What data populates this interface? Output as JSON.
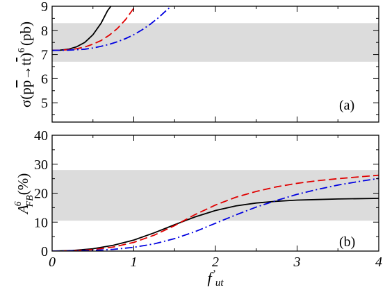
{
  "chart_data": [
    {
      "type": "line",
      "panel_label": "(a)",
      "ylabel": "σ(pp̄→tt̄)⁶ (pb)",
      "ylabel_parts": {
        "sigma": "σ(p",
        "pbar": "p",
        "arrow": "→t",
        "tbar": "t",
        "close": ")",
        "sup": "6",
        "unit": "(pb)"
      },
      "xlim": [
        0,
        4
      ],
      "ylim": [
        4.2,
        9
      ],
      "yticks": [
        5,
        6,
        7,
        8,
        9
      ],
      "x_tick_labels_shown": false,
      "band": {
        "min": 6.7,
        "max": 8.3,
        "color": "#dcdcdc"
      },
      "series": [
        {
          "style": "solid",
          "color": "#000000",
          "points": [
            [
              0,
              7.17
            ],
            [
              0.1,
              7.18
            ],
            [
              0.2,
              7.22
            ],
            [
              0.3,
              7.32
            ],
            [
              0.4,
              7.5
            ],
            [
              0.5,
              7.82
            ],
            [
              0.6,
              8.3
            ],
            [
              0.68,
              8.82
            ],
            [
              0.72,
              9.0
            ]
          ]
        },
        {
          "style": "dashed",
          "color": "#e00000",
          "points": [
            [
              0,
              7.17
            ],
            [
              0.1,
              7.18
            ],
            [
              0.2,
              7.2
            ],
            [
              0.3,
              7.24
            ],
            [
              0.4,
              7.31
            ],
            [
              0.5,
              7.43
            ],
            [
              0.6,
              7.58
            ],
            [
              0.7,
              7.8
            ],
            [
              0.8,
              8.08
            ],
            [
              0.9,
              8.45
            ],
            [
              1.0,
              8.92
            ],
            [
              1.03,
              9.0
            ]
          ]
        },
        {
          "style": "dashdot",
          "color": "#0000e0",
          "points": [
            [
              0,
              7.17
            ],
            [
              0.2,
              7.18
            ],
            [
              0.4,
              7.22
            ],
            [
              0.5,
              7.27
            ],
            [
              0.6,
              7.34
            ],
            [
              0.7,
              7.42
            ],
            [
              0.8,
              7.53
            ],
            [
              0.9,
              7.66
            ],
            [
              1.0,
              7.82
            ],
            [
              1.1,
              8.02
            ],
            [
              1.2,
              8.25
            ],
            [
              1.3,
              8.52
            ],
            [
              1.4,
              8.83
            ],
            [
              1.46,
              9.0
            ]
          ]
        }
      ]
    },
    {
      "type": "line",
      "panel_label": "(b)",
      "ylabel_parts": {
        "main": "A",
        "sup": "6",
        "sub": "FB",
        "unit": "(%)"
      },
      "xlabel_parts": {
        "main": "f",
        "prime": "’",
        "sub": "ut"
      },
      "xlim": [
        0,
        4
      ],
      "ylim": [
        0,
        40
      ],
      "xticks": [
        0,
        1,
        2,
        3,
        4
      ],
      "yticks": [
        0,
        10,
        20,
        30,
        40
      ],
      "band": {
        "min": 10.5,
        "max": 28,
        "color": "#dcdcdc"
      },
      "series": [
        {
          "style": "solid",
          "color": "#000000",
          "points": [
            [
              0,
              0
            ],
            [
              0.25,
              0.2
            ],
            [
              0.5,
              0.8
            ],
            [
              0.75,
              2.0
            ],
            [
              1.0,
              3.8
            ],
            [
              1.25,
              6.3
            ],
            [
              1.5,
              9.1
            ],
            [
              1.75,
              11.8
            ],
            [
              2.0,
              14.0
            ],
            [
              2.25,
              15.6
            ],
            [
              2.5,
              16.6
            ],
            [
              2.75,
              17.2
            ],
            [
              3.0,
              17.6
            ],
            [
              3.25,
              17.8
            ],
            [
              3.5,
              18.0
            ],
            [
              3.75,
              18.1
            ],
            [
              4.0,
              18.2
            ]
          ]
        },
        {
          "style": "dashed",
          "color": "#e00000",
          "points": [
            [
              0,
              0
            ],
            [
              0.25,
              0.1
            ],
            [
              0.5,
              0.5
            ],
            [
              0.75,
              1.4
            ],
            [
              1.0,
              3.0
            ],
            [
              1.25,
              5.5
            ],
            [
              1.5,
              8.8
            ],
            [
              1.75,
              12.6
            ],
            [
              2.0,
              15.9
            ],
            [
              2.25,
              18.6
            ],
            [
              2.5,
              20.6
            ],
            [
              2.75,
              22.2
            ],
            [
              3.0,
              23.4
            ],
            [
              3.25,
              24.3
            ],
            [
              3.5,
              25.0
            ],
            [
              3.75,
              25.6
            ],
            [
              4.0,
              26.2
            ]
          ]
        },
        {
          "style": "dashdot",
          "color": "#0000e0",
          "points": [
            [
              0,
              0
            ],
            [
              0.5,
              0.2
            ],
            [
              0.75,
              0.6
            ],
            [
              1.0,
              1.3
            ],
            [
              1.25,
              2.5
            ],
            [
              1.5,
              4.3
            ],
            [
              1.75,
              6.7
            ],
            [
              2.0,
              9.6
            ],
            [
              2.25,
              12.5
            ],
            [
              2.5,
              15.2
            ],
            [
              2.75,
              17.5
            ],
            [
              3.0,
              19.6
            ],
            [
              3.25,
              21.3
            ],
            [
              3.5,
              22.8
            ],
            [
              3.75,
              24.0
            ],
            [
              4.0,
              25.1
            ]
          ]
        }
      ]
    }
  ]
}
